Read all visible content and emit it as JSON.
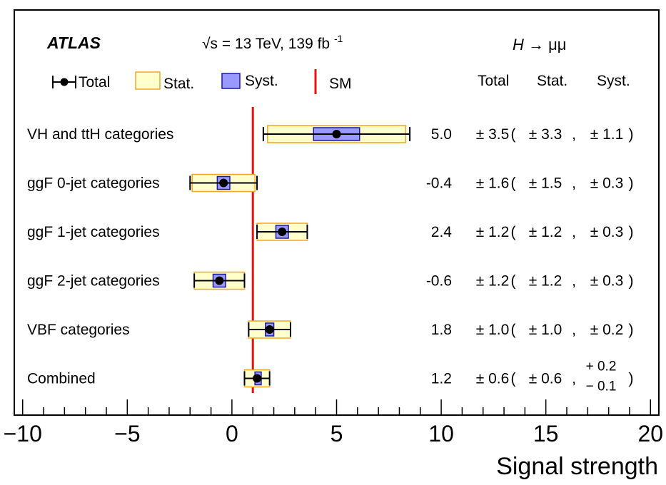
{
  "chart_data": {
    "type": "forest",
    "xlabel": "Signal strength",
    "xlim": [
      -10.4,
      20.4
    ],
    "x_ticks": [
      {
        "value": -10,
        "label": "−10"
      },
      {
        "value": -5,
        "label": "−5"
      },
      {
        "value": 0,
        "label": "0"
      },
      {
        "value": 5,
        "label": "5"
      },
      {
        "value": 10,
        "label": "10"
      },
      {
        "value": 15,
        "label": "15"
      },
      {
        "value": 20,
        "label": "20"
      }
    ],
    "experiment": "ATLAS",
    "energy_label": "= 13 TeV,  139 fb",
    "energy_sqrt": "√s",
    "lumi_sup": "-1",
    "process_H": "H",
    "process_arrow": " → μμ",
    "legend": {
      "total": "Total",
      "stat": "Stat.",
      "syst": "Syst.",
      "sm": "SM"
    },
    "column_headers": {
      "total": "Total",
      "stat": "Stat.",
      "syst": "Syst."
    },
    "sm_value": 1.0,
    "colors": {
      "stat_fill": "#ffffcc",
      "stat_edge": "#f5a623",
      "syst_fill": "#9999ff",
      "syst_edge": "#1a1aa6",
      "sm_line": "#ee1111"
    },
    "rows": [
      {
        "label": "VH and ttH categories",
        "value": 5.0,
        "total_err": 3.5,
        "stat_err": 3.3,
        "syst_err": 1.1,
        "value_text": "5.0",
        "total_text": "± 3.5",
        "open": "(",
        "stat_text": "± 3.3",
        "comma": ",",
        "syst_text": "± 1.1",
        "close": ")"
      },
      {
        "label": "ggF 0-jet categories",
        "value": -0.4,
        "total_err": 1.6,
        "stat_err": 1.5,
        "syst_err": 0.3,
        "value_text": "-0.4",
        "total_text": "± 1.6",
        "open": "(",
        "stat_text": "± 1.5",
        "comma": ",",
        "syst_text": "± 0.3",
        "close": ")"
      },
      {
        "label": "ggF 1-jet categories",
        "value": 2.4,
        "total_err": 1.2,
        "stat_err": 1.2,
        "syst_err": 0.3,
        "value_text": "2.4",
        "total_text": "± 1.2",
        "open": "(",
        "stat_text": "± 1.2",
        "comma": ",",
        "syst_text": "± 0.3",
        "close": ")"
      },
      {
        "label": "ggF 2-jet categories",
        "value": -0.6,
        "total_err": 1.2,
        "stat_err": 1.2,
        "syst_err": 0.3,
        "value_text": "-0.6",
        "total_text": "± 1.2",
        "open": "(",
        "stat_text": "± 1.2",
        "comma": ",",
        "syst_text": "± 0.3",
        "close": ")"
      },
      {
        "label": "VBF categories",
        "value": 1.8,
        "total_err": 1.0,
        "stat_err": 1.0,
        "syst_err": 0.2,
        "value_text": "1.8",
        "total_text": "± 1.0",
        "open": "(",
        "stat_text": "± 1.0",
        "comma": ",",
        "syst_text": "± 0.2",
        "close": ")"
      },
      {
        "label": "Combined",
        "value": 1.2,
        "total_err": 0.6,
        "stat_err": 0.6,
        "syst_err_up": 0.2,
        "syst_err_down": 0.1,
        "value_text": "1.2",
        "total_text": "± 0.6",
        "open": "(",
        "stat_text": "± 0.6",
        "comma": ",",
        "syst_up_text": "+ 0.2",
        "syst_down_text": "− 0.1",
        "close": ")"
      }
    ]
  }
}
